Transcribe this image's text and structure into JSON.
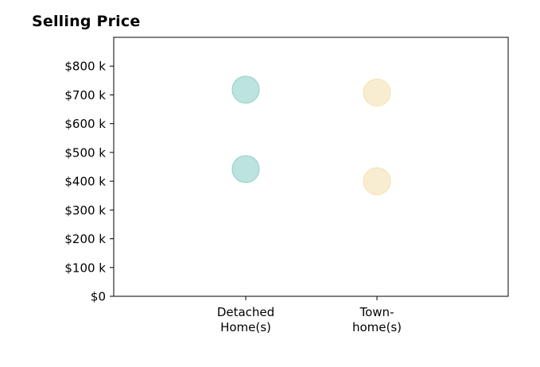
{
  "chart_data": {
    "type": "scatter",
    "title": "Selling Price",
    "xlabel": "",
    "ylabel": "",
    "categories": [
      [
        "Detached",
        "Home(s)"
      ],
      [
        "Town-",
        "home(s)"
      ]
    ],
    "ylim": [
      0,
      900
    ],
    "yticks": [
      0,
      100,
      200,
      300,
      400,
      500,
      600,
      700,
      800
    ],
    "ytick_labels": [
      "$0",
      "$100 k",
      "$200 k",
      "$300 k",
      "$400 k",
      "$500 k",
      "$600 k",
      "$700 k",
      "$800 k"
    ],
    "points": [
      {
        "category": 0,
        "value": 718,
        "color": "#8fd0c8"
      },
      {
        "category": 0,
        "value": 442,
        "color": "#8fd0c8"
      },
      {
        "category": 1,
        "value": 708,
        "color": "#f5e1b2"
      },
      {
        "category": 1,
        "value": 400,
        "color": "#f5e1b2"
      }
    ],
    "grid": false,
    "legend": "none"
  }
}
